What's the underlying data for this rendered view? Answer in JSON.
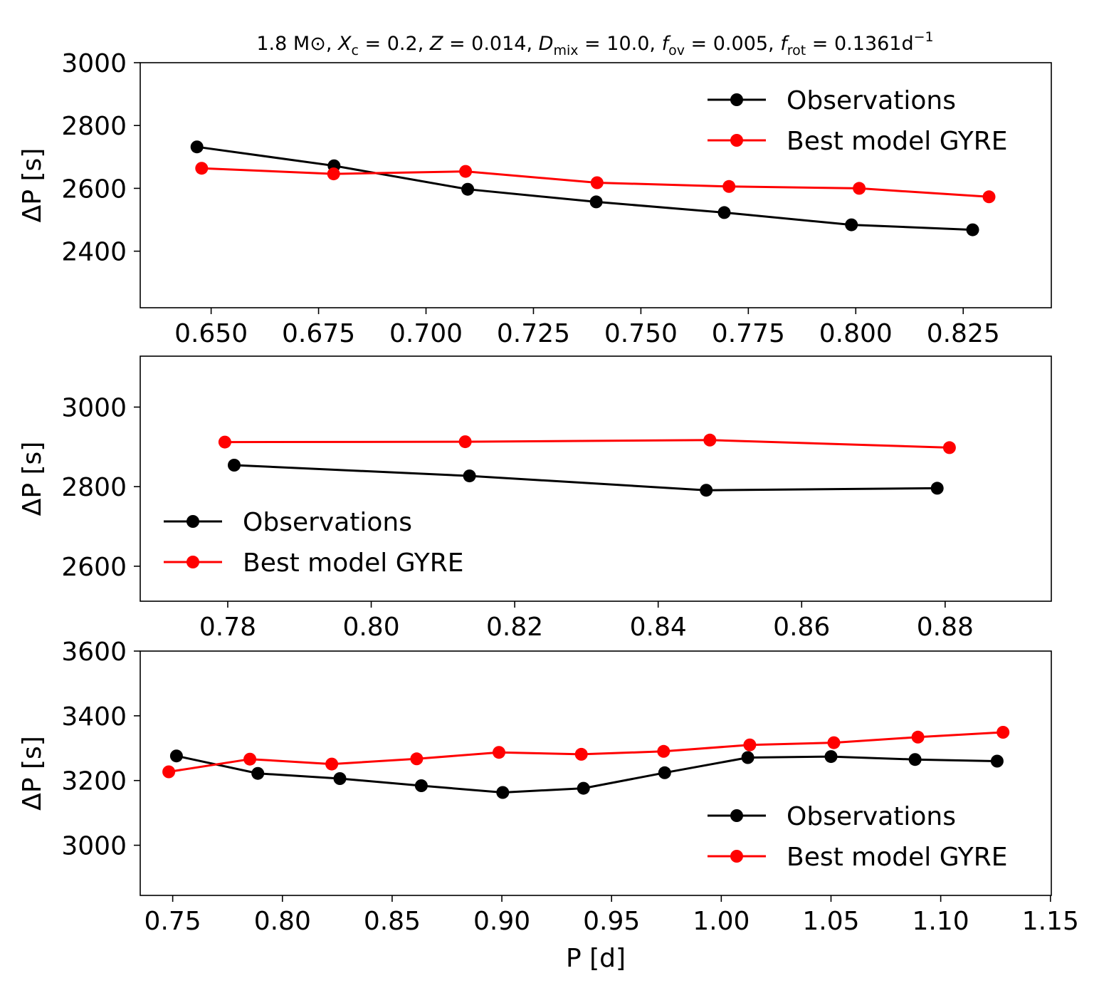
{
  "title": "1.8 M⊙, Xc = 0.2, Z = 0.014, Dmix = 10.0, fov = 0.005, frot = 0.1361d⁻¹",
  "title_parts": {
    "mass": "1.8",
    "sun": "M⊙",
    "xc": "0.2",
    "z": "0.014",
    "dmix": "10.0",
    "fov": "0.005",
    "frot": "0.1361",
    "unit": "d",
    "exp": "−1"
  },
  "colors": {
    "observations": "#000000",
    "model": "#ff0000"
  },
  "chart_data": [
    {
      "type": "line",
      "title": "1.8 M⊙, Xc = 0.2, Z = 0.014, Dmix = 10.0, fov = 0.005, frot = 0.1361d⁻¹",
      "xlabel": "",
      "ylabel": "ΔP [s]",
      "xlim": [
        0.6335,
        0.8455
      ],
      "ylim": [
        2220,
        3000
      ],
      "xticks": [
        0.65,
        0.675,
        0.7,
        0.725,
        0.75,
        0.775,
        0.8,
        0.825
      ],
      "xtick_labels": [
        "0.650",
        "0.675",
        "0.700",
        "0.725",
        "0.750",
        "0.775",
        "0.800",
        "0.825"
      ],
      "yticks": [
        2400,
        2600,
        2800,
        3000
      ],
      "ytick_labels": [
        "2400",
        "2600",
        "2800",
        "3000"
      ],
      "legend": "upper right",
      "series": [
        {
          "name": "Observations",
          "color": "#000000",
          "x": [
            0.6467,
            0.6786,
            0.7097,
            0.7396,
            0.7694,
            0.799,
            0.8272
          ],
          "y": [
            2732,
            2672,
            2597,
            2557,
            2523,
            2484,
            2468
          ]
        },
        {
          "name": "Best model GYRE",
          "color": "#ff0000",
          "x": [
            0.6478,
            0.6785,
            0.7092,
            0.7398,
            0.7705,
            0.8008,
            0.831
          ],
          "y": [
            2664,
            2646,
            2654,
            2618,
            2606,
            2600,
            2573
          ]
        }
      ]
    },
    {
      "type": "line",
      "xlabel": "",
      "ylabel": "ΔP [s]",
      "xlim": [
        0.7678,
        0.8948
      ],
      "ylim": [
        2512,
        3128
      ],
      "xticks": [
        0.78,
        0.8,
        0.82,
        0.84,
        0.86,
        0.88
      ],
      "xtick_labels": [
        "0.78",
        "0.80",
        "0.82",
        "0.84",
        "0.86",
        "0.88"
      ],
      "yticks": [
        2600,
        2800,
        3000
      ],
      "ytick_labels": [
        "2600",
        "2800",
        "3000"
      ],
      "legend": "lower left",
      "series": [
        {
          "name": "Observations",
          "color": "#000000",
          "x": [
            0.7809,
            0.8137,
            0.8467,
            0.8789
          ],
          "y": [
            2854,
            2827,
            2791,
            2796
          ]
        },
        {
          "name": "Best model GYRE",
          "color": "#ff0000",
          "x": [
            0.7796,
            0.8131,
            0.8472,
            0.8806
          ],
          "y": [
            2912,
            2913,
            2917,
            2898
          ]
        }
      ]
    },
    {
      "type": "line",
      "xlabel": "P [d]",
      "ylabel": "ΔP [s]",
      "xlim": [
        0.7352,
        1.1504
      ],
      "ylim": [
        2845,
        3600
      ],
      "xticks": [
        0.75,
        0.8,
        0.85,
        0.9,
        0.95,
        1.0,
        1.05,
        1.1,
        1.15
      ],
      "xtick_labels": [
        "0.75",
        "0.80",
        "0.85",
        "0.90",
        "0.95",
        "1.00",
        "1.05",
        "1.10",
        "1.15"
      ],
      "yticks": [
        3000,
        3200,
        3400,
        3600
      ],
      "ytick_labels": [
        "3000",
        "3200",
        "3400",
        "3600"
      ],
      "legend": "lower right",
      "series": [
        {
          "name": "Observations",
          "color": "#000000",
          "x": [
            0.7517,
            0.7888,
            0.8262,
            0.8633,
            0.9004,
            0.9372,
            0.9742,
            1.0121,
            1.05,
            1.0883,
            1.1257
          ],
          "y": [
            3276,
            3222,
            3206,
            3184,
            3163,
            3176,
            3224,
            3271,
            3274,
            3265,
            3260
          ]
        },
        {
          "name": "Best model GYRE",
          "color": "#ff0000",
          "x": [
            0.7482,
            0.7852,
            0.8225,
            0.8612,
            0.8987,
            0.9362,
            0.9737,
            1.013,
            1.0513,
            1.0896,
            1.1284
          ],
          "y": [
            3227,
            3266,
            3251,
            3267,
            3287,
            3281,
            3290,
            3310,
            3317,
            3334,
            3349
          ]
        }
      ]
    }
  ]
}
